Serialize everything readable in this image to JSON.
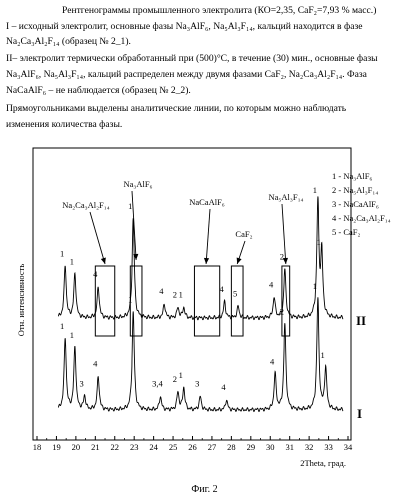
{
  "document": {
    "title": "Рентгенограммы промышленного электролита (КО=2,35, CaF₂=7,93 % масс.)",
    "desc1_line1": "I – исходный электролит, основные фазы Na₃AlF₆, Na₅Al₃F₁₄, кальций находится в фазе",
    "desc1_line2": "Na₂Ca₃Al₂F₁₄ (образец № 2_1).",
    "desc2_line1": "II– электролит термически обработанный при (500)°С, в течение (30) мин., основные фазы",
    "desc2_line2": "Na₃AlF₆, Na₅Al₃F₁₄, кальций распределен между двумя фазами CaF₂, Na₂Ca₃Al₂F₁₄. Фаза",
    "desc2_line3": "NaCaAlF₆ – не наблюдается (образец № 2_2).",
    "note_line1": "Прямоугольниками выделены аналитические линии, по которым можно наблюдать",
    "note_line2": "изменения количества фазы.",
    "figure_caption": "Фиг. 2"
  },
  "chart_data": {
    "type": "line",
    "xlabel": "2Theta, град.",
    "ylabel": "Отн. интенсивность",
    "xlim": [
      18,
      34
    ],
    "x_ticks": [
      "18",
      "19",
      "20",
      "21",
      "22",
      "23",
      "24",
      "25",
      "26",
      "27",
      "28",
      "29",
      "30",
      "31",
      "32",
      "33",
      "34"
    ],
    "grid": false,
    "legend": {
      "placement": "top-right",
      "entries": [
        "1 - Na₃AlF₆",
        "2 - Na₅Al₃F₁₄",
        "3 - NaCaAlF₆",
        "4 - Na₂Ca₃Al₂F₁₄",
        "5 - CaF₂"
      ]
    },
    "phase_annotations": [
      "Na₂Ca₃Al₂F₁₄",
      "Na₃AlF₆",
      "NaCaAlF₆",
      "CaF₂",
      "Na₅Al₃F₁₄"
    ],
    "analytical_boxes_2theta": [
      [
        21.0,
        22.0
      ],
      [
        22.8,
        23.4
      ],
      [
        26.1,
        27.4
      ],
      [
        28.0,
        28.6
      ],
      [
        30.6,
        31.0
      ]
    ],
    "series": [
      {
        "name": "II",
        "peaks_2theta": [
          {
            "x": 19.45,
            "h": 0.45,
            "label": "1"
          },
          {
            "x": 19.95,
            "h": 0.38,
            "label": "1"
          },
          {
            "x": 21.15,
            "h": 0.27,
            "label": "4"
          },
          {
            "x": 22.95,
            "h": 0.86,
            "label": "1"
          },
          {
            "x": 24.55,
            "h": 0.12,
            "label": "4"
          },
          {
            "x": 25.25,
            "h": 0.09,
            "label": "2"
          },
          {
            "x": 25.55,
            "h": 0.09,
            "label": "1"
          },
          {
            "x": 27.65,
            "h": 0.14,
            "label": "4"
          },
          {
            "x": 28.35,
            "h": 0.1,
            "label": "5"
          },
          {
            "x": 30.2,
            "h": 0.18,
            "label": "4"
          },
          {
            "x": 30.75,
            "h": 0.42,
            "label": "2"
          },
          {
            "x": 32.45,
            "h": 1.0,
            "label": "1"
          },
          {
            "x": 32.65,
            "h": 0.55,
            "label": "1"
          }
        ]
      },
      {
        "name": "I",
        "peaks_2theta": [
          {
            "x": 19.45,
            "h": 0.64,
            "label": "1"
          },
          {
            "x": 19.95,
            "h": 0.56,
            "label": "1"
          },
          {
            "x": 20.45,
            "h": 0.12,
            "label": "3"
          },
          {
            "x": 21.15,
            "h": 0.3,
            "label": "4"
          },
          {
            "x": 22.95,
            "h": 0.88,
            "label": "1"
          },
          {
            "x": 24.35,
            "h": 0.12,
            "label": "3,4"
          },
          {
            "x": 25.25,
            "h": 0.16,
            "label": "2"
          },
          {
            "x": 25.55,
            "h": 0.2,
            "label": "1"
          },
          {
            "x": 26.4,
            "h": 0.12,
            "label": "3"
          },
          {
            "x": 27.75,
            "h": 0.09,
            "label": "4"
          },
          {
            "x": 30.25,
            "h": 0.32,
            "label": "4"
          },
          {
            "x": 30.75,
            "h": 0.77,
            "label": "2"
          },
          {
            "x": 32.45,
            "h": 1.0,
            "label": "1"
          },
          {
            "x": 32.85,
            "h": 0.38,
            "label": "1"
          }
        ]
      }
    ]
  }
}
